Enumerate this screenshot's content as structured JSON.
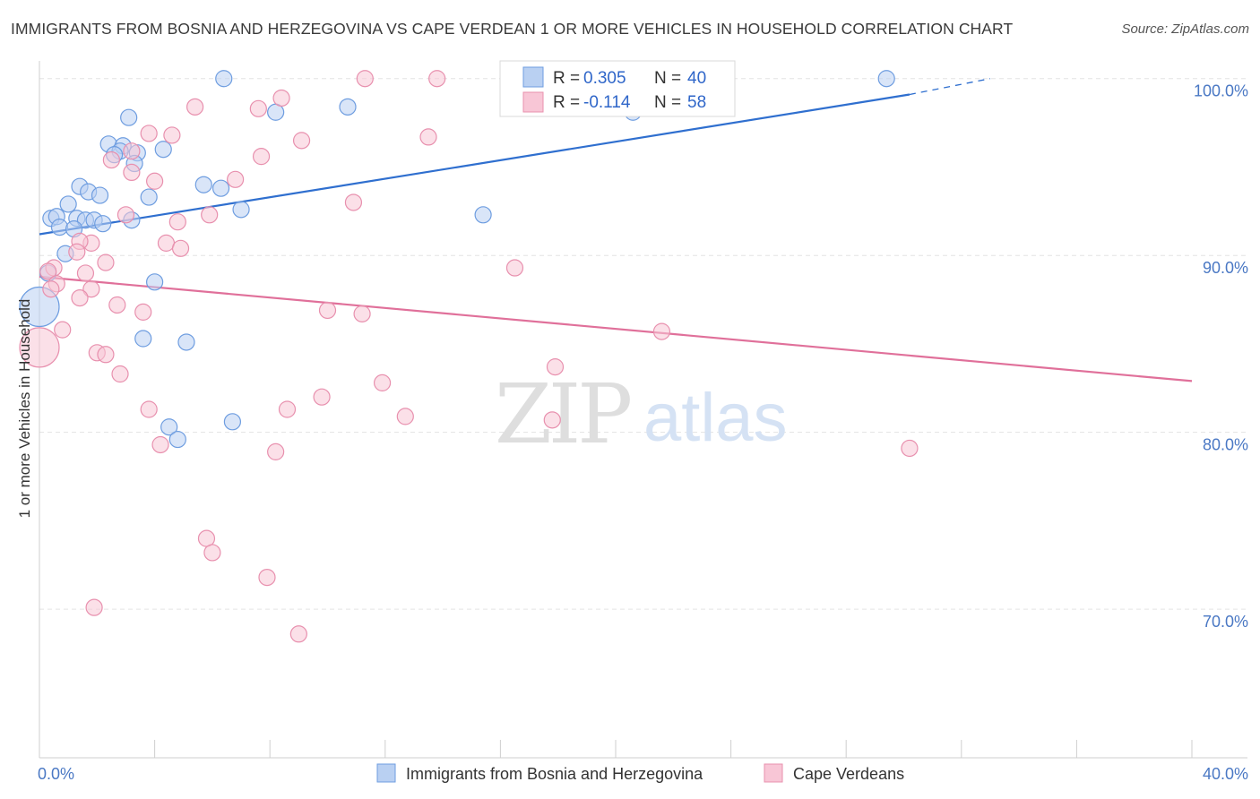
{
  "title": "IMMIGRANTS FROM BOSNIA AND HERZEGOVINA VS CAPE VERDEAN 1 OR MORE VEHICLES IN HOUSEHOLD CORRELATION CHART",
  "source": "Source: ZipAtlas.com",
  "watermark": {
    "zip": "ZIP",
    "atlas": "atlas"
  },
  "colors": {
    "blue_fill": "#b9d0f2",
    "blue_stroke": "#6e9de0",
    "blue_line": "#2f6fcf",
    "pink_fill": "#f8c6d6",
    "pink_stroke": "#e890ae",
    "pink_line": "#e0709a",
    "tick_text": "#4a78c4",
    "grid": "#e3e3e3"
  },
  "legend": {
    "r_label": "R =",
    "n_label": "N =",
    "blue": {
      "r": "0.305",
      "n": "40"
    },
    "pink": {
      "r": "-0.114",
      "n": "58"
    }
  },
  "bottom_legend": [
    "Immigrants from Bosnia and Herzegovina",
    "Cape Verdeans"
  ],
  "chart_data": {
    "type": "scatter",
    "xlabel": "",
    "ylabel": "1 or more Vehicles in Household",
    "xlim": [
      0,
      40
    ],
    "ylim": [
      61.6,
      101.0
    ],
    "x_tick_labels": [
      "0.0%",
      "40.0%"
    ],
    "y_ticks": [
      70,
      80,
      90,
      100
    ],
    "y_tick_labels": [
      "70.0%",
      "80.0%",
      "90.0%",
      "100.0%"
    ],
    "grid": "horizontal dashed",
    "legend_position": "top-center",
    "series": [
      {
        "name": "Immigrants from Bosnia and Herzegovina",
        "color": "blue",
        "trend": {
          "x": [
            0.0,
            30.2
          ],
          "y": [
            91.2,
            99.1
          ],
          "dash_to": [
            33.0,
            100.0
          ]
        },
        "points": [
          {
            "x": 6.4,
            "y": 100.0
          },
          {
            "x": 29.4,
            "y": 100.0
          },
          {
            "x": 8.2,
            "y": 98.1
          },
          {
            "x": 10.7,
            "y": 98.4
          },
          {
            "x": 3.1,
            "y": 97.8
          },
          {
            "x": 2.4,
            "y": 96.3
          },
          {
            "x": 2.9,
            "y": 96.2
          },
          {
            "x": 4.3,
            "y": 96.0
          },
          {
            "x": 2.8,
            "y": 95.9
          },
          {
            "x": 2.6,
            "y": 95.7
          },
          {
            "x": 3.4,
            "y": 95.8
          },
          {
            "x": 3.3,
            "y": 95.2
          },
          {
            "x": 1.4,
            "y": 93.9
          },
          {
            "x": 5.7,
            "y": 94.0
          },
          {
            "x": 6.3,
            "y": 93.8
          },
          {
            "x": 1.7,
            "y": 93.6
          },
          {
            "x": 2.1,
            "y": 93.4
          },
          {
            "x": 3.8,
            "y": 93.3
          },
          {
            "x": 1.0,
            "y": 92.9
          },
          {
            "x": 7.0,
            "y": 92.6
          },
          {
            "x": 15.4,
            "y": 92.3
          },
          {
            "x": 0.4,
            "y": 92.1
          },
          {
            "x": 0.6,
            "y": 92.2
          },
          {
            "x": 1.3,
            "y": 92.1
          },
          {
            "x": 1.6,
            "y": 92.0
          },
          {
            "x": 1.9,
            "y": 92.0
          },
          {
            "x": 2.2,
            "y": 91.8
          },
          {
            "x": 3.2,
            "y": 92.0
          },
          {
            "x": 0.7,
            "y": 91.6
          },
          {
            "x": 1.2,
            "y": 91.5
          },
          {
            "x": 0.9,
            "y": 90.1
          },
          {
            "x": 0.3,
            "y": 89.0
          },
          {
            "x": 4.0,
            "y": 88.5
          },
          {
            "x": 0.0,
            "y": 87.1,
            "size": "large"
          },
          {
            "x": 3.6,
            "y": 85.3
          },
          {
            "x": 5.1,
            "y": 85.1
          },
          {
            "x": 6.7,
            "y": 80.6
          },
          {
            "x": 4.5,
            "y": 80.3
          },
          {
            "x": 4.8,
            "y": 79.6
          },
          {
            "x": 20.6,
            "y": 98.1
          }
        ]
      },
      {
        "name": "Cape Verdeans",
        "color": "pink",
        "trend": {
          "x": [
            0.0,
            40.0
          ],
          "y": [
            88.8,
            82.9
          ]
        },
        "points": [
          {
            "x": 11.3,
            "y": 100.0
          },
          {
            "x": 13.8,
            "y": 100.0
          },
          {
            "x": 8.4,
            "y": 98.9
          },
          {
            "x": 5.4,
            "y": 98.4
          },
          {
            "x": 7.6,
            "y": 98.3
          },
          {
            "x": 3.8,
            "y": 96.9
          },
          {
            "x": 4.6,
            "y": 96.8
          },
          {
            "x": 9.1,
            "y": 96.5
          },
          {
            "x": 13.5,
            "y": 96.7
          },
          {
            "x": 3.2,
            "y": 95.9
          },
          {
            "x": 2.5,
            "y": 95.4
          },
          {
            "x": 7.7,
            "y": 95.6
          },
          {
            "x": 3.2,
            "y": 94.7
          },
          {
            "x": 4.0,
            "y": 94.2
          },
          {
            "x": 6.8,
            "y": 94.3
          },
          {
            "x": 10.9,
            "y": 93.0
          },
          {
            "x": 3.0,
            "y": 92.3
          },
          {
            "x": 5.9,
            "y": 92.3
          },
          {
            "x": 4.8,
            "y": 91.9
          },
          {
            "x": 1.8,
            "y": 90.7
          },
          {
            "x": 1.4,
            "y": 90.8
          },
          {
            "x": 4.4,
            "y": 90.7
          },
          {
            "x": 4.9,
            "y": 90.4
          },
          {
            "x": 1.3,
            "y": 90.2
          },
          {
            "x": 0.5,
            "y": 89.3
          },
          {
            "x": 2.3,
            "y": 89.6
          },
          {
            "x": 16.5,
            "y": 89.3
          },
          {
            "x": 0.3,
            "y": 89.1
          },
          {
            "x": 1.6,
            "y": 89.0
          },
          {
            "x": 0.6,
            "y": 88.4
          },
          {
            "x": 0.4,
            "y": 88.1
          },
          {
            "x": 1.8,
            "y": 88.1
          },
          {
            "x": 1.4,
            "y": 87.6
          },
          {
            "x": 2.7,
            "y": 87.2
          },
          {
            "x": 3.6,
            "y": 86.8
          },
          {
            "x": 10.0,
            "y": 86.9
          },
          {
            "x": 11.2,
            "y": 86.7
          },
          {
            "x": 0.8,
            "y": 85.8
          },
          {
            "x": 21.6,
            "y": 85.7
          },
          {
            "x": 0.0,
            "y": 84.8,
            "size": "large"
          },
          {
            "x": 2.0,
            "y": 84.5
          },
          {
            "x": 2.3,
            "y": 84.4
          },
          {
            "x": 17.9,
            "y": 83.7
          },
          {
            "x": 2.8,
            "y": 83.3
          },
          {
            "x": 11.9,
            "y": 82.8
          },
          {
            "x": 9.8,
            "y": 82.0
          },
          {
            "x": 3.8,
            "y": 81.3
          },
          {
            "x": 8.6,
            "y": 81.3
          },
          {
            "x": 12.7,
            "y": 80.9
          },
          {
            "x": 17.8,
            "y": 80.7
          },
          {
            "x": 4.2,
            "y": 79.3
          },
          {
            "x": 8.2,
            "y": 78.9
          },
          {
            "x": 30.2,
            "y": 79.1
          },
          {
            "x": 5.8,
            "y": 74.0
          },
          {
            "x": 6.0,
            "y": 73.2
          },
          {
            "x": 7.9,
            "y": 71.8
          },
          {
            "x": 1.9,
            "y": 70.1
          },
          {
            "x": 9.0,
            "y": 68.6
          }
        ]
      }
    ]
  }
}
